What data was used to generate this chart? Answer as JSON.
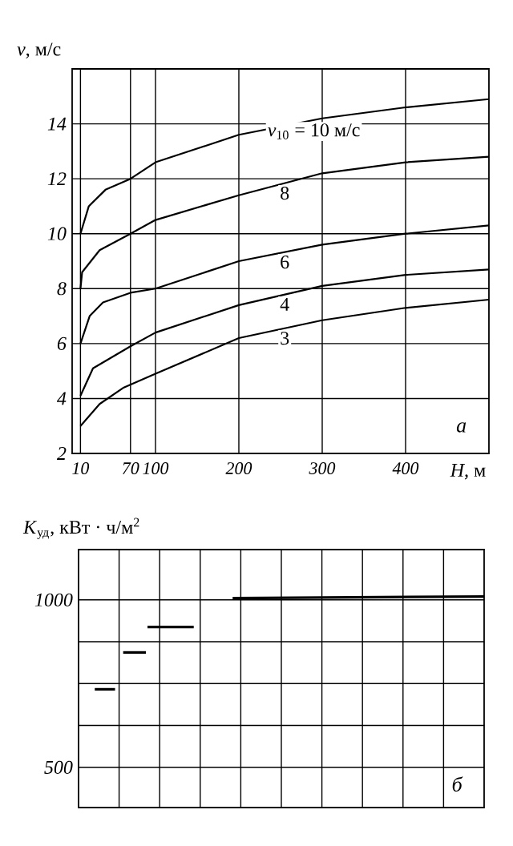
{
  "chart_data": [
    {
      "type": "line",
      "xlabel": "*H*, м",
      "ylabel": "*v*, м/с",
      "annotations": [
        "а"
      ],
      "xlim": [
        0,
        500
      ],
      "xticks": [
        10,
        70,
        100,
        200,
        300,
        400
      ],
      "ylim": [
        2,
        16
      ],
      "yticks": [
        2,
        4,
        6,
        8,
        10,
        12,
        14
      ],
      "grid": true,
      "series": [
        {
          "name": "*v*$_{10}$ = 10 м/с",
          "color": "#000000",
          "x": [
            10,
            20,
            40,
            70,
            100,
            200,
            300,
            400,
            500
          ],
          "values": [
            10.0,
            11.0,
            11.6,
            12.0,
            12.6,
            13.6,
            14.2,
            14.6,
            14.9
          ]
        },
        {
          "name": "8",
          "color": "#000000",
          "x": [
            10,
            12,
            33,
            70,
            100,
            200,
            300,
            400,
            500
          ],
          "values": [
            8.0,
            8.6,
            9.4,
            10.0,
            10.5,
            11.4,
            12.2,
            12.6,
            12.8
          ]
        },
        {
          "name": "6",
          "color": "#000000",
          "x": [
            10,
            21,
            37,
            70,
            100,
            200,
            300,
            400,
            500
          ],
          "values": [
            6.0,
            7.0,
            7.5,
            7.85,
            8.0,
            9.0,
            9.6,
            10.0,
            10.3
          ]
        },
        {
          "name": "4",
          "color": "#000000",
          "x": [
            10,
            25,
            70,
            100,
            200,
            300,
            400,
            500
          ],
          "values": [
            4.1,
            5.1,
            5.9,
            6.4,
            7.4,
            8.1,
            8.5,
            8.7
          ]
        },
        {
          "name": "3",
          "color": "#000000",
          "x": [
            10,
            33,
            62,
            100,
            200,
            300,
            400,
            500
          ],
          "values": [
            3.0,
            3.8,
            4.4,
            4.9,
            6.2,
            6.85,
            7.3,
            7.6
          ]
        }
      ]
    },
    {
      "type": "line",
      "ylabel": "*K*$_{уд}$, кВт · ч/м$^{2}$",
      "annotations": [
        "б"
      ],
      "xlim": [
        0,
        500
      ],
      "xticks": [
        {
          "value": 50,
          "label": null
        },
        {
          "value": 100,
          "label": null
        },
        {
          "value": 150,
          "label": null
        },
        {
          "value": 200,
          "label": null
        },
        {
          "value": 250,
          "label": null
        },
        {
          "value": 300,
          "label": null
        },
        {
          "value": 350,
          "label": null
        },
        {
          "value": 400,
          "label": null
        },
        {
          "value": 450,
          "label": null
        }
      ],
      "ylim": [
        380,
        1150
      ],
      "yticks": [
        500,
        {
          "value": 625,
          "label": null
        },
        {
          "value": 750,
          "label": null
        },
        {
          "value": 875,
          "label": null
        },
        1000
      ],
      "grid": true,
      "tick_labels": "y",
      "series": [
        {
          "color": "#000000",
          "x": [
            20,
            45
          ],
          "values": [
            733,
            733
          ]
        },
        {
          "color": "#000000",
          "x": [
            55,
            83
          ],
          "values": [
            843,
            843
          ]
        },
        {
          "color": "#000000",
          "x": [
            85,
            142
          ],
          "values": [
            919,
            919
          ]
        },
        {
          "color": "#000000",
          "x": [
            190,
            500
          ],
          "values": [
            1005,
            1010
          ]
        }
      ]
    }
  ]
}
